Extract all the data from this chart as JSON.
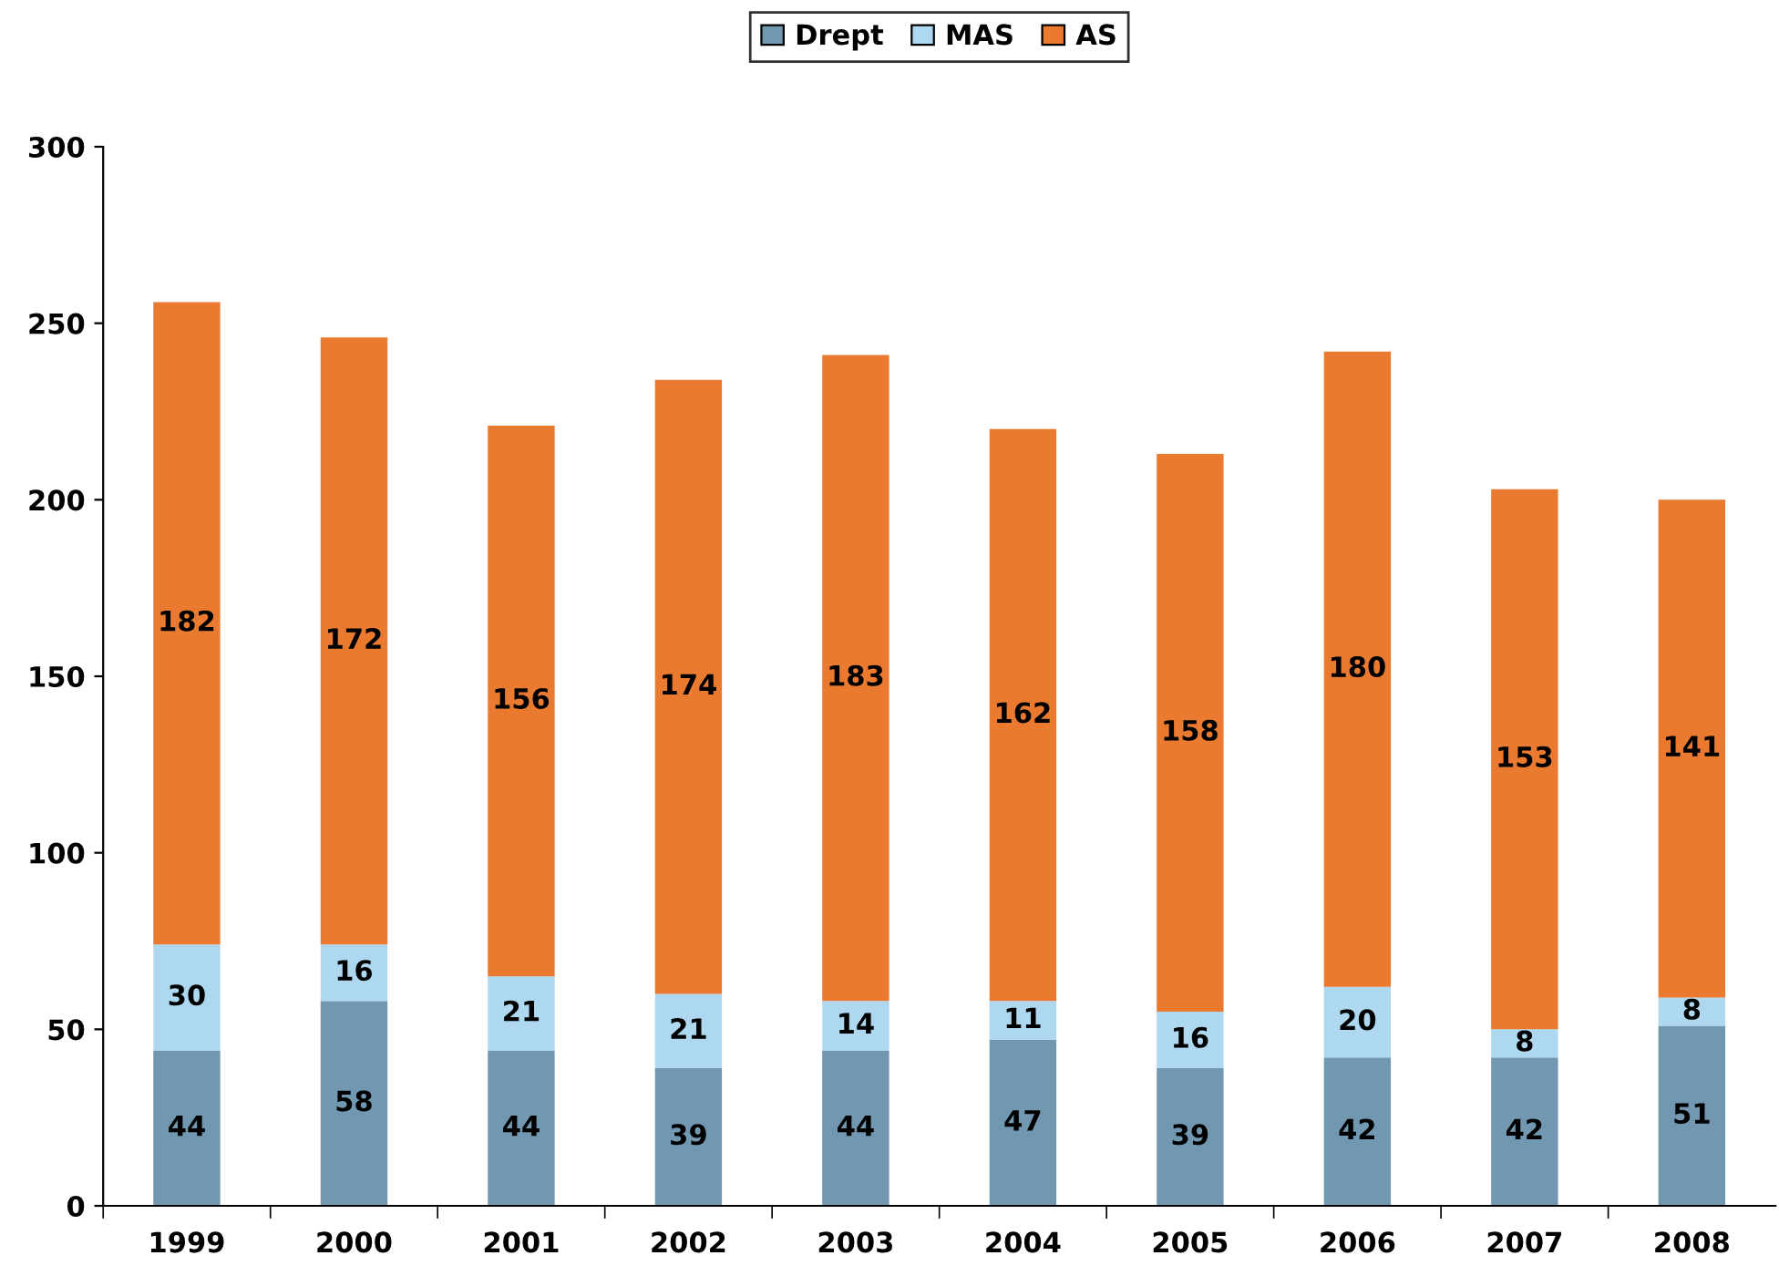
{
  "chart_data": {
    "type": "bar",
    "stacked": true,
    "categories": [
      "1999",
      "2000",
      "2001",
      "2002",
      "2003",
      "2004",
      "2005",
      "2006",
      "2007",
      "2008"
    ],
    "series": [
      {
        "name": "Drept",
        "color": "#7198b0",
        "values": [
          44,
          58,
          44,
          39,
          44,
          47,
          39,
          42,
          42,
          51
        ]
      },
      {
        "name": "MAS",
        "color": "#aed8f0",
        "values": [
          30,
          16,
          21,
          21,
          14,
          11,
          16,
          20,
          8,
          8
        ]
      },
      {
        "name": "AS",
        "color": "#ea7a30",
        "values": [
          182,
          172,
          156,
          174,
          183,
          162,
          158,
          180,
          153,
          141
        ]
      }
    ],
    "ylim": [
      0,
      300
    ],
    "yticks": [
      0,
      50,
      100,
      150,
      200,
      250,
      300
    ],
    "data_labels": true,
    "legend": "top",
    "grid": false
  }
}
